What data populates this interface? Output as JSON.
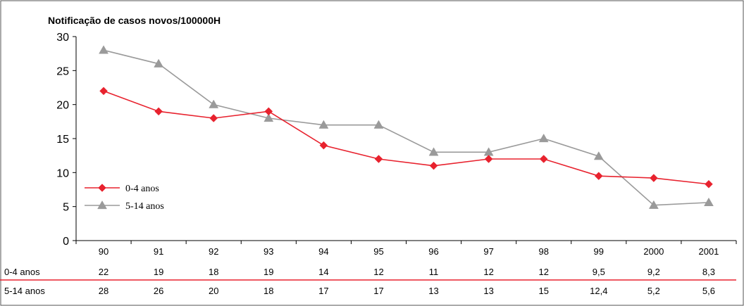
{
  "chart_data": {
    "type": "line",
    "ylabel": "Notificação de casos novos/100000H",
    "ylim": [
      0,
      30
    ],
    "yticks": [
      "0",
      "5",
      "10",
      "15",
      "20",
      "25",
      "30"
    ],
    "categories": [
      "90",
      "91",
      "92",
      "93",
      "94",
      "95",
      "96",
      "97",
      "98",
      "99",
      "2000",
      "2001"
    ],
    "series": [
      {
        "name": "0-4 anos",
        "legend_label": "0-4 anos",
        "table_label": "0-4 anos",
        "color": "#e8222e",
        "marker": "diamond",
        "values": [
          22,
          19,
          18,
          19,
          14,
          12,
          11,
          12,
          12,
          9.5,
          9.2,
          8.3
        ],
        "value_labels": [
          "22",
          "19",
          "18",
          "19",
          "14",
          "12",
          "11",
          "12",
          "12",
          "9,5",
          "9,2",
          "8,3"
        ]
      },
      {
        "name": "5-14 anos",
        "legend_label": "5-14 anos",
        "table_label": "5-14 anos",
        "color": "#9a9a9a",
        "marker": "triangle",
        "values": [
          28,
          26,
          20,
          18,
          17,
          17,
          13,
          13,
          15,
          12.4,
          5.2,
          5.6
        ],
        "value_labels": [
          "28",
          "26",
          "20",
          "18",
          "17",
          "17",
          "13",
          "13",
          "15",
          "12,4",
          "5,2",
          "5,6"
        ]
      }
    ],
    "legend_position": "left",
    "grid": false,
    "data_table": true,
    "table_separator_color": "#e8222e"
  }
}
